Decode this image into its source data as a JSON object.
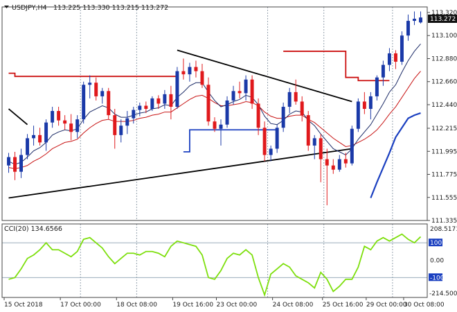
{
  "header": {
    "symbol": "USDJPY,H4",
    "ohlc": "113.225 113.330 113.215 113.272"
  },
  "cci": {
    "label": "CCI(20) 134.6566",
    "max_label": "208.5171",
    "min_label": "-214.5004",
    "levels": [
      "100",
      "0.00",
      "-100"
    ]
  },
  "price_axis": {
    "ticks": [
      "113.320",
      "113.100",
      "112.880",
      "112.660",
      "112.440",
      "112.215",
      "111.995",
      "111.775",
      "111.555",
      "111.335"
    ],
    "current": "113.272"
  },
  "time_axis": {
    "ticks": [
      "15 Oct 2018",
      "17 Oct 00:00",
      "18 Oct 08:00",
      "19 Oct 16:00",
      "23 Oct 00:00",
      "24 Oct 08:00",
      "25 Oct 16:00",
      "29 Oct 00:00",
      "30 Oct 08:00"
    ]
  },
  "colors": {
    "bull": "#1a39a8",
    "bear": "#e0191c",
    "ema_fast": "#1b2a66",
    "ema_slow": "#c81414",
    "cci_line": "#7ddf0c",
    "trendline": "#000000",
    "level_blue": "#1a3fc0",
    "level_red": "#cc1111",
    "grid": "#7a8a99"
  },
  "chart_data": {
    "type": "candlestick",
    "title": "USDJPY,H4",
    "y_unit": "price (JPY)",
    "candles": [
      {
        "o": 111.86,
        "h": 111.98,
        "l": 111.79,
        "c": 111.94
      },
      {
        "o": 111.94,
        "h": 111.99,
        "l": 111.72,
        "c": 111.8
      },
      {
        "o": 111.8,
        "h": 112.02,
        "l": 111.74,
        "c": 111.96
      },
      {
        "o": 111.96,
        "h": 112.16,
        "l": 111.92,
        "c": 112.12
      },
      {
        "o": 112.12,
        "h": 112.24,
        "l": 112.05,
        "c": 112.15
      },
      {
        "o": 112.15,
        "h": 112.22,
        "l": 112.05,
        "c": 112.08
      },
      {
        "o": 112.08,
        "h": 112.3,
        "l": 112.0,
        "c": 112.27
      },
      {
        "o": 112.27,
        "h": 112.42,
        "l": 112.22,
        "c": 112.38
      },
      {
        "o": 112.38,
        "h": 112.42,
        "l": 112.24,
        "c": 112.29
      },
      {
        "o": 112.29,
        "h": 112.34,
        "l": 112.2,
        "c": 112.26
      },
      {
        "o": 112.26,
        "h": 112.35,
        "l": 112.1,
        "c": 112.18
      },
      {
        "o": 112.18,
        "h": 112.34,
        "l": 112.12,
        "c": 112.3
      },
      {
        "o": 112.3,
        "h": 112.66,
        "l": 112.26,
        "c": 112.63
      },
      {
        "o": 112.63,
        "h": 112.72,
        "l": 112.5,
        "c": 112.65
      },
      {
        "o": 112.65,
        "h": 112.7,
        "l": 112.48,
        "c": 112.52
      },
      {
        "o": 112.52,
        "h": 112.6,
        "l": 112.45,
        "c": 112.57
      },
      {
        "o": 112.57,
        "h": 112.6,
        "l": 112.3,
        "c": 112.34
      },
      {
        "o": 112.34,
        "h": 112.4,
        "l": 112.02,
        "c": 112.15
      },
      {
        "o": 112.15,
        "h": 112.3,
        "l": 112.08,
        "c": 112.24
      },
      {
        "o": 112.24,
        "h": 112.38,
        "l": 112.16,
        "c": 112.31
      },
      {
        "o": 112.31,
        "h": 112.42,
        "l": 112.26,
        "c": 112.39
      },
      {
        "o": 112.39,
        "h": 112.46,
        "l": 112.33,
        "c": 112.43
      },
      {
        "o": 112.43,
        "h": 112.47,
        "l": 112.36,
        "c": 112.4
      },
      {
        "o": 112.4,
        "h": 112.52,
        "l": 112.38,
        "c": 112.5
      },
      {
        "o": 112.5,
        "h": 112.53,
        "l": 112.4,
        "c": 112.45
      },
      {
        "o": 112.45,
        "h": 112.58,
        "l": 112.4,
        "c": 112.54
      },
      {
        "o": 112.54,
        "h": 112.62,
        "l": 112.3,
        "c": 112.42
      },
      {
        "o": 112.42,
        "h": 112.8,
        "l": 112.4,
        "c": 112.76
      },
      {
        "o": 112.76,
        "h": 112.88,
        "l": 112.68,
        "c": 112.73
      },
      {
        "o": 112.73,
        "h": 112.84,
        "l": 112.66,
        "c": 112.8
      },
      {
        "o": 112.8,
        "h": 112.86,
        "l": 112.7,
        "c": 112.76
      },
      {
        "o": 112.76,
        "h": 112.83,
        "l": 112.6,
        "c": 112.63
      },
      {
        "o": 112.63,
        "h": 112.7,
        "l": 112.24,
        "c": 112.28
      },
      {
        "o": 112.28,
        "h": 112.32,
        "l": 112.18,
        "c": 112.21
      },
      {
        "o": 112.21,
        "h": 112.3,
        "l": 112.05,
        "c": 112.25
      },
      {
        "o": 112.25,
        "h": 112.52,
        "l": 112.22,
        "c": 112.48
      },
      {
        "o": 112.48,
        "h": 112.62,
        "l": 112.44,
        "c": 112.57
      },
      {
        "o": 112.57,
        "h": 112.66,
        "l": 112.5,
        "c": 112.55
      },
      {
        "o": 112.55,
        "h": 112.72,
        "l": 112.48,
        "c": 112.68
      },
      {
        "o": 112.68,
        "h": 112.72,
        "l": 112.4,
        "c": 112.45
      },
      {
        "o": 112.45,
        "h": 112.5,
        "l": 112.15,
        "c": 112.22
      },
      {
        "o": 112.22,
        "h": 112.28,
        "l": 111.9,
        "c": 111.96
      },
      {
        "o": 111.96,
        "h": 112.05,
        "l": 111.9,
        "c": 112.02
      },
      {
        "o": 112.02,
        "h": 112.25,
        "l": 111.98,
        "c": 112.22
      },
      {
        "o": 112.22,
        "h": 112.46,
        "l": 112.18,
        "c": 112.42
      },
      {
        "o": 112.42,
        "h": 112.6,
        "l": 112.36,
        "c": 112.56
      },
      {
        "o": 112.56,
        "h": 112.68,
        "l": 112.44,
        "c": 112.47
      },
      {
        "o": 112.47,
        "h": 112.52,
        "l": 112.28,
        "c": 112.34
      },
      {
        "o": 112.34,
        "h": 112.38,
        "l": 112.0,
        "c": 112.05
      },
      {
        "o": 112.05,
        "h": 112.15,
        "l": 111.92,
        "c": 112.12
      },
      {
        "o": 112.12,
        "h": 112.16,
        "l": 111.7,
        "c": 111.92
      },
      {
        "o": 111.92,
        "h": 112.02,
        "l": 111.48,
        "c": 111.86
      },
      {
        "o": 111.86,
        "h": 111.92,
        "l": 111.78,
        "c": 111.82
      },
      {
        "o": 111.82,
        "h": 111.96,
        "l": 111.8,
        "c": 111.92
      },
      {
        "o": 111.92,
        "h": 111.98,
        "l": 111.84,
        "c": 111.88
      },
      {
        "o": 111.88,
        "h": 112.24,
        "l": 111.86,
        "c": 112.21
      },
      {
        "o": 112.21,
        "h": 112.5,
        "l": 112.18,
        "c": 112.47
      },
      {
        "o": 112.47,
        "h": 112.56,
        "l": 112.35,
        "c": 112.4
      },
      {
        "o": 112.4,
        "h": 112.56,
        "l": 112.3,
        "c": 112.52
      },
      {
        "o": 112.52,
        "h": 112.72,
        "l": 112.48,
        "c": 112.7
      },
      {
        "o": 112.7,
        "h": 112.86,
        "l": 112.62,
        "c": 112.82
      },
      {
        "o": 112.82,
        "h": 112.98,
        "l": 112.76,
        "c": 112.93
      },
      {
        "o": 112.93,
        "h": 112.96,
        "l": 112.78,
        "c": 112.85
      },
      {
        "o": 112.85,
        "h": 113.14,
        "l": 112.82,
        "c": 113.1
      },
      {
        "o": 113.1,
        "h": 113.3,
        "l": 113.05,
        "c": 113.24
      },
      {
        "o": 113.24,
        "h": 113.33,
        "l": 113.2,
        "c": 113.26
      },
      {
        "o": 113.225,
        "h": 113.33,
        "l": 113.215,
        "c": 113.272
      }
    ],
    "ema_fast": [
      111.9,
      111.87,
      111.89,
      111.94,
      112.0,
      112.03,
      112.08,
      112.15,
      112.18,
      112.2,
      112.19,
      112.21,
      112.3,
      112.37,
      112.4,
      112.43,
      112.41,
      112.35,
      112.32,
      112.32,
      112.34,
      112.36,
      112.37,
      112.4,
      112.41,
      112.44,
      112.43,
      112.51,
      112.56,
      112.62,
      112.65,
      112.65,
      112.56,
      112.48,
      112.42,
      112.44,
      112.47,
      112.49,
      112.53,
      112.51,
      112.44,
      112.33,
      112.26,
      112.25,
      112.29,
      112.35,
      112.38,
      112.37,
      112.29,
      112.24,
      112.16,
      112.09,
      112.02,
      111.99,
      111.96,
      112.02,
      112.11,
      112.18,
      112.25,
      112.35,
      112.45,
      112.56,
      112.63,
      112.75,
      112.86,
      112.95,
      113.02
    ],
    "ema_slow": [
      111.84,
      111.83,
      111.84,
      111.86,
      111.9,
      111.93,
      111.97,
      112.02,
      112.05,
      112.08,
      112.09,
      112.11,
      112.17,
      112.22,
      112.26,
      112.29,
      112.3,
      112.28,
      112.28,
      112.28,
      112.29,
      112.31,
      112.32,
      112.34,
      112.35,
      112.37,
      112.37,
      112.41,
      112.45,
      112.49,
      112.52,
      112.53,
      112.5,
      112.46,
      112.43,
      112.43,
      112.44,
      112.45,
      112.47,
      112.46,
      112.43,
      112.37,
      112.33,
      112.31,
      112.31,
      112.33,
      112.34,
      112.34,
      112.3,
      112.27,
      112.22,
      112.17,
      112.12,
      112.08,
      112.04,
      112.05,
      112.08,
      112.11,
      112.15,
      112.2,
      112.27,
      112.35,
      112.42,
      112.51,
      112.6,
      112.69,
      112.76
    ],
    "ema_long": [
      null,
      null,
      null,
      null,
      null,
      null,
      null,
      null,
      null,
      null,
      null,
      null,
      null,
      null,
      null,
      null,
      null,
      null,
      null,
      null,
      null,
      null,
      null,
      null,
      null,
      null,
      null,
      null,
      null,
      null,
      null,
      null,
      null,
      null,
      null,
      null,
      null,
      null,
      null,
      null,
      null,
      null,
      null,
      null,
      null,
      null,
      null,
      null,
      null,
      null,
      null,
      null,
      null,
      null,
      null,
      null,
      null,
      null,
      111.55,
      111.7,
      111.84,
      111.98,
      112.13,
      112.22,
      112.31,
      112.34,
      112.36
    ],
    "levels_red": [
      {
        "from": 0,
        "to": 1,
        "y": 112.74
      },
      {
        "from": 1,
        "to": 27,
        "y": 112.71
      },
      {
        "from": 44,
        "to": 54,
        "y": 112.95
      },
      {
        "from": 54,
        "to": 56,
        "y": 112.7
      },
      {
        "from": 56,
        "to": 61,
        "y": 112.67
      }
    ],
    "levels_blue": [
      {
        "from": 28,
        "to": 29,
        "y": 111.99
      },
      {
        "from": 29,
        "to": 43,
        "y": 112.2
      }
    ],
    "trendlines": [
      {
        "from": 0,
        "y1": 111.55,
        "to": 55,
        "y2": 112.02
      },
      {
        "from": 27,
        "y1": 112.96,
        "to": 55,
        "y2": 112.47
      },
      {
        "from": 0,
        "y1": 112.4,
        "to": 3,
        "y2": 112.25
      }
    ],
    "cci_values": [
      -110,
      -100,
      -50,
      10,
      30,
      60,
      100,
      60,
      60,
      40,
      20,
      50,
      120,
      130,
      100,
      70,
      20,
      -20,
      10,
      40,
      40,
      30,
      50,
      50,
      40,
      20,
      80,
      110,
      100,
      90,
      80,
      30,
      -100,
      -110,
      -60,
      10,
      40,
      30,
      60,
      30,
      -100,
      -200,
      -80,
      -50,
      -20,
      -40,
      -90,
      -110,
      -130,
      -160,
      -70,
      -110,
      -180,
      -150,
      -110,
      -110,
      -40,
      80,
      60,
      110,
      130,
      110,
      130,
      150,
      120,
      100,
      135
    ],
    "cci_ylim": [
      -214.5004,
      208.5171
    ],
    "ylim": [
      111.335,
      113.32
    ]
  }
}
